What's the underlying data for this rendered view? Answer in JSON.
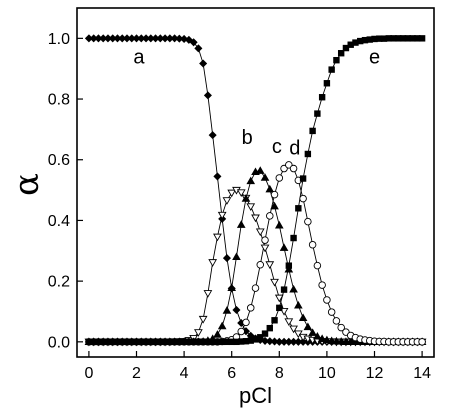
{
  "chart_data": {
    "type": "line",
    "xlabel": "pCl",
    "ylabel": "α",
    "xlim": [
      -0.5,
      14.5
    ],
    "ylim": [
      -0.05,
      1.1
    ],
    "xticks": [
      0,
      2,
      4,
      6,
      8,
      10,
      12,
      14
    ],
    "yticks": [
      0.0,
      0.2,
      0.4,
      0.6,
      0.8,
      1.0
    ],
    "xtick_labels": [
      "0",
      "2",
      "4",
      "6",
      "8",
      "10",
      "12",
      "14"
    ],
    "ytick_labels": [
      "0.0",
      "0.2",
      "0.4",
      "0.6",
      "0.8",
      "1.0"
    ],
    "grid": false,
    "legend": "none",
    "x": [
      0.0,
      0.2,
      0.4,
      0.6,
      0.8,
      1.0,
      1.2,
      1.4,
      1.6,
      1.8,
      2.0,
      2.2,
      2.4,
      2.6,
      2.8,
      3.0,
      3.2,
      3.4,
      3.6,
      3.8,
      4.0,
      4.2,
      4.4,
      4.6,
      4.8,
      5.0,
      5.2,
      5.4,
      5.6,
      5.8,
      6.0,
      6.2,
      6.4,
      6.6,
      6.8,
      7.0,
      7.2,
      7.4,
      7.6,
      7.8,
      8.0,
      8.2,
      8.4,
      8.6,
      8.8,
      9.0,
      9.2,
      9.4,
      9.6,
      9.8,
      10.0,
      10.2,
      10.4,
      10.6,
      10.8,
      11.0,
      11.2,
      11.4,
      11.6,
      11.8,
      12.0,
      12.2,
      12.4,
      12.6,
      12.8,
      13.0,
      13.2,
      13.4,
      13.6,
      13.8,
      14.0
    ],
    "series": [
      {
        "name": "a",
        "marker": "filled-diamond",
        "label_at": [
          2.1,
          0.94
        ],
        "values": [
          1.0,
          1.0,
          1.0,
          1.0,
          1.0,
          1.0,
          1.0,
          1.0,
          1.0,
          1.0,
          1.0,
          1.0,
          1.0,
          1.0,
          1.0,
          1.0,
          1.0,
          1.0,
          1.0,
          0.999,
          0.998,
          0.995,
          0.987,
          0.967,
          0.917,
          0.812,
          0.681,
          0.545,
          0.405,
          0.276,
          0.176,
          0.105,
          0.062,
          0.035,
          0.02,
          0.011,
          0.006,
          0.003,
          0.002,
          0.001,
          0.0,
          0.0,
          0.0,
          0.0,
          0.0,
          0.0,
          0.0,
          0.0,
          0.0,
          0.0,
          0.0,
          0.0,
          0.0,
          0.0,
          0.0,
          0.0,
          0.0,
          0.0,
          0.0,
          0.0,
          0.0,
          0.0,
          0.0,
          0.0,
          0.0,
          0.0,
          0.0,
          0.0,
          0.0,
          0.0,
          0.0
        ]
      },
      {
        "name": "b",
        "marker": "open-triangle-down",
        "label_at": [
          6.65,
          0.675
        ],
        "values": [
          0.0,
          0.0,
          0.0,
          0.0,
          0.0,
          0.0,
          0.0,
          0.0,
          0.0,
          0.0,
          0.0,
          0.0,
          0.0,
          0.0,
          0.0,
          0.0,
          0.0,
          0.0,
          0.001,
          0.001,
          0.002,
          0.005,
          0.012,
          0.031,
          0.075,
          0.16,
          0.262,
          0.346,
          0.418,
          0.466,
          0.491,
          0.5,
          0.492,
          0.474,
          0.446,
          0.409,
          0.363,
          0.31,
          0.255,
          0.197,
          0.145,
          0.101,
          0.067,
          0.043,
          0.027,
          0.016,
          0.01,
          0.006,
          0.003,
          0.002,
          0.001,
          0.001,
          0.0,
          0.0,
          0.0,
          0.0,
          0.0,
          0.0,
          0.0,
          0.0,
          0.0,
          0.0,
          0.0,
          0.0,
          0.0,
          0.0,
          0.0,
          0.0,
          0.0,
          0.0,
          0.0
        ]
      },
      {
        "name": "c",
        "marker": "filled-triangle-up",
        "label_at": [
          7.9,
          0.645
        ],
        "values": [
          0.0,
          0.0,
          0.0,
          0.0,
          0.0,
          0.0,
          0.0,
          0.0,
          0.0,
          0.0,
          0.0,
          0.0,
          0.0,
          0.0,
          0.0,
          0.0,
          0.0,
          0.0,
          0.0,
          0.0,
          0.0,
          0.0,
          0.0,
          0.0,
          0.001,
          0.004,
          0.01,
          0.024,
          0.052,
          0.103,
          0.178,
          0.28,
          0.386,
          0.472,
          0.53,
          0.56,
          0.564,
          0.541,
          0.503,
          0.447,
          0.384,
          0.31,
          0.239,
          0.173,
          0.12,
          0.079,
          0.049,
          0.03,
          0.018,
          0.01,
          0.006,
          0.003,
          0.002,
          0.001,
          0.0,
          0.0,
          0.0,
          0.0,
          0.0,
          0.0,
          0.0,
          0.0,
          0.0,
          0.0,
          0.0,
          0.0,
          0.0,
          0.0,
          0.0,
          0.0,
          0.0
        ]
      },
      {
        "name": "d",
        "marker": "open-circle",
        "label_at": [
          8.65,
          0.64
        ],
        "values": [
          0.0,
          0.0,
          0.0,
          0.0,
          0.0,
          0.0,
          0.0,
          0.0,
          0.0,
          0.0,
          0.0,
          0.0,
          0.0,
          0.0,
          0.0,
          0.0,
          0.0,
          0.0,
          0.0,
          0.0,
          0.0,
          0.0,
          0.0,
          0.0,
          0.0,
          0.0,
          0.0,
          0.0,
          0.001,
          0.003,
          0.007,
          0.016,
          0.034,
          0.064,
          0.112,
          0.177,
          0.254,
          0.335,
          0.415,
          0.485,
          0.54,
          0.571,
          0.583,
          0.571,
          0.532,
          0.472,
          0.396,
          0.32,
          0.251,
          0.187,
          0.138,
          0.098,
          0.069,
          0.047,
          0.032,
          0.021,
          0.014,
          0.009,
          0.006,
          0.004,
          0.002,
          0.001,
          0.001,
          0.0,
          0.0,
          0.0,
          0.0,
          0.0,
          0.0,
          0.0,
          0.0
        ]
      },
      {
        "name": "e",
        "marker": "filled-square",
        "label_at": [
          12.0,
          0.94
        ],
        "values": [
          0.0,
          0.0,
          0.0,
          0.0,
          0.0,
          0.0,
          0.0,
          0.0,
          0.0,
          0.0,
          0.0,
          0.0,
          0.0,
          0.0,
          0.0,
          0.0,
          0.0,
          0.0,
          0.0,
          0.0,
          0.0,
          0.0,
          0.0,
          0.0,
          0.0,
          0.0,
          0.0,
          0.0,
          0.0,
          0.0,
          0.0,
          0.0,
          0.001,
          0.002,
          0.004,
          0.008,
          0.015,
          0.027,
          0.045,
          0.071,
          0.112,
          0.172,
          0.251,
          0.342,
          0.44,
          0.538,
          0.619,
          0.695,
          0.752,
          0.806,
          0.852,
          0.897,
          0.928,
          0.951,
          0.968,
          0.979,
          0.986,
          0.991,
          0.994,
          0.996,
          0.998,
          0.999,
          0.999,
          1.0,
          1.0,
          1.0,
          1.0,
          1.0,
          1.0,
          1.0,
          1.0
        ]
      }
    ]
  }
}
